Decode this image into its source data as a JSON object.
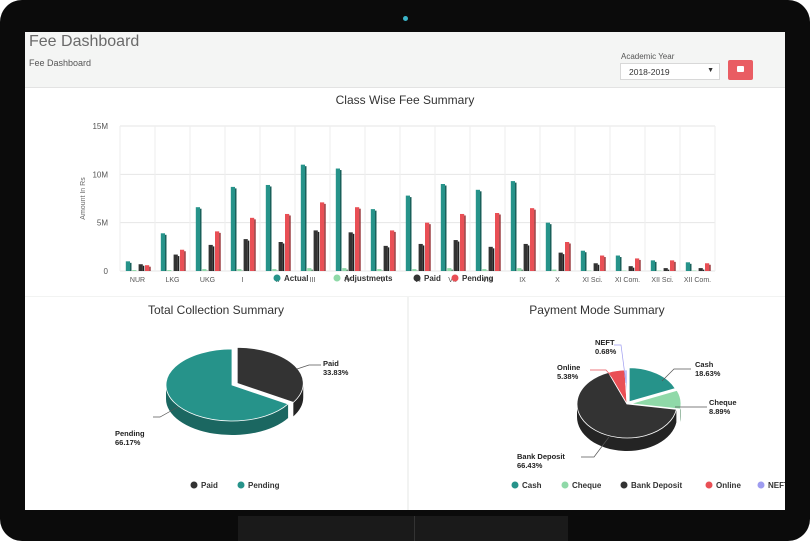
{
  "header": {
    "title": "Fee Dashboard",
    "breadcrumb": "Fee Dashboard",
    "academic_year_label": "Academic Year",
    "academic_year_value": "2018-2019",
    "print_icon": "print-icon"
  },
  "colors": {
    "teal": "#26938a",
    "light_green": "#8fd9a8",
    "dark": "#333333",
    "red": "#e94f55",
    "lavender": "#9e9cf0"
  },
  "chart_data": [
    {
      "type": "bar",
      "title": "Class Wise Fee Summary",
      "ylabel": "Amount In Rs",
      "xlabel": "",
      "ylim": [
        0,
        15000000
      ],
      "ytick_labels": [
        "0",
        "5M",
        "10M",
        "15M"
      ],
      "ytick_values": [
        0,
        5000000,
        10000000,
        15000000
      ],
      "grid": true,
      "legend": "bottom",
      "categories": [
        "NUR",
        "LKG",
        "UKG",
        "I",
        "II",
        "III",
        "IV",
        "V",
        "VI",
        "VII",
        "VIII",
        "IX",
        "X",
        "XI Sci.",
        "XI Com.",
        "XII Sci.",
        "XII Com."
      ],
      "series": [
        {
          "name": "Actual",
          "values": [
            1000000,
            3900000,
            6600000,
            8700000,
            8900000,
            11000000,
            10600000,
            6400000,
            7800000,
            9000000,
            8400000,
            9300000,
            5000000,
            2100000,
            1600000,
            1100000,
            900000
          ]
        },
        {
          "name": "Adjustments",
          "values": [
            100000,
            100000,
            200000,
            200000,
            200000,
            300000,
            300000,
            200000,
            200000,
            300000,
            200000,
            300000,
            150000,
            50000,
            50000,
            50000,
            50000
          ]
        },
        {
          "name": "Paid",
          "values": [
            700000,
            1700000,
            2700000,
            3300000,
            3000000,
            4200000,
            4000000,
            2600000,
            2800000,
            3200000,
            2500000,
            2800000,
            1900000,
            800000,
            500000,
            300000,
            300000
          ]
        },
        {
          "name": "Pending",
          "values": [
            600000,
            2200000,
            4100000,
            5500000,
            5900000,
            7100000,
            6600000,
            4200000,
            5000000,
            5900000,
            6000000,
            6500000,
            3000000,
            1600000,
            1300000,
            1100000,
            800000
          ]
        }
      ]
    },
    {
      "type": "pie",
      "title": "Total Collection Summary",
      "legend": "bottom",
      "labels": [
        "Paid",
        "Pending"
      ],
      "values": [
        33.83,
        66.17
      ],
      "value_labels": [
        "33.83%",
        "66.17%"
      ]
    },
    {
      "type": "pie",
      "title": "Payment Mode Summary",
      "legend": "bottom",
      "labels": [
        "Cash",
        "Cheque",
        "Bank Deposit",
        "Online",
        "NEFT"
      ],
      "values": [
        18.63,
        8.89,
        66.43,
        5.38,
        0.68
      ],
      "value_labels": [
        "18.63%",
        "8.89%",
        "66.43%",
        "5.38%",
        "0.68%"
      ]
    }
  ]
}
